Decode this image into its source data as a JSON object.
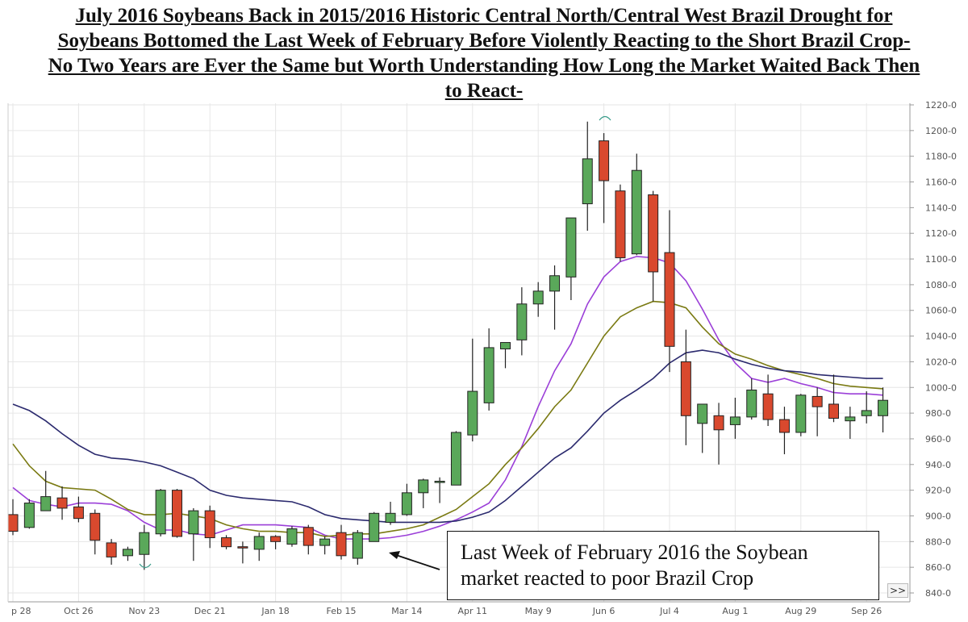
{
  "title": {
    "line1": "July 2016 Soybeans Back in 2015/2016 Historic Central North/Central West Brazil Drought for",
    "line2": "Soybeans Bottomed the Last Week of February Before Violently Reacting to the Short Brazil Crop-",
    "line3": "No Two Years are Ever the Same but Worth Understanding How Long the Market Waited Back Then",
    "line4": "to React-"
  },
  "annotation": {
    "line1": "Last Week of February 2016 the Soybean",
    "line2": "market reacted to poor Brazil Crop"
  },
  "scroll_button_label": ">>",
  "colors": {
    "up": "#5aa85a",
    "down": "#d9492e",
    "ma_fast": "#9b3fd8",
    "ma_mid": "#7a7a12",
    "ma_slow": "#2b2a6e",
    "grid": "#e6e6e6"
  },
  "chart_data": {
    "type": "candlestick",
    "ylim": [
      840,
      1220
    ],
    "y_ticks": [
      "1220-0",
      "1200-0",
      "1180-0",
      "1160-0",
      "1140-0",
      "1120-0",
      "1100-0",
      "1080-0",
      "1060-0",
      "1040-0",
      "1020-0",
      "1000-0",
      "980-0",
      "960-0",
      "940-0",
      "920-0",
      "900-0",
      "880-0",
      "860-0",
      "840-0"
    ],
    "x_tick_labels": [
      "p 28",
      "Oct 26",
      "Nov 23",
      "Dec 21",
      "Jan 18",
      "Feb 15",
      "Mar 14",
      "Apr 11",
      "May 9",
      "Jun 6",
      "Jul 4",
      "Aug 1",
      "Aug 29",
      "Sep 26"
    ],
    "x_tick_index": [
      0,
      4,
      8,
      12,
      16,
      20,
      24,
      28,
      32,
      36,
      40,
      44,
      48,
      52
    ],
    "candles": [
      {
        "o": 901,
        "h": 913,
        "l": 885,
        "c": 888
      },
      {
        "o": 891,
        "h": 913,
        "l": 890,
        "c": 910
      },
      {
        "o": 904,
        "h": 935,
        "l": 904,
        "c": 915
      },
      {
        "o": 914,
        "h": 923,
        "l": 897,
        "c": 906
      },
      {
        "o": 907,
        "h": 915,
        "l": 895,
        "c": 898
      },
      {
        "o": 902,
        "h": 905,
        "l": 870,
        "c": 881
      },
      {
        "o": 879,
        "h": 882,
        "l": 862,
        "c": 868
      },
      {
        "o": 869,
        "h": 876,
        "l": 865,
        "c": 874
      },
      {
        "o": 870,
        "h": 893,
        "l": 858,
        "c": 887
      },
      {
        "o": 886,
        "h": 921,
        "l": 884,
        "c": 920
      },
      {
        "o": 920,
        "h": 921,
        "l": 883,
        "c": 884
      },
      {
        "o": 886,
        "h": 906,
        "l": 865,
        "c": 904
      },
      {
        "o": 904,
        "h": 908,
        "l": 875,
        "c": 883
      },
      {
        "o": 883,
        "h": 885,
        "l": 874,
        "c": 876
      },
      {
        "o": 876,
        "h": 880,
        "l": 863,
        "c": 875
      },
      {
        "o": 874,
        "h": 887,
        "l": 865,
        "c": 884
      },
      {
        "o": 884,
        "h": 885,
        "l": 874,
        "c": 880
      },
      {
        "o": 878,
        "h": 892,
        "l": 876,
        "c": 890
      },
      {
        "o": 891,
        "h": 893,
        "l": 870,
        "c": 877
      },
      {
        "o": 877,
        "h": 884,
        "l": 870,
        "c": 882
      },
      {
        "o": 887,
        "h": 893,
        "l": 866,
        "c": 869
      },
      {
        "o": 867,
        "h": 889,
        "l": 862,
        "c": 887
      },
      {
        "o": 880,
        "h": 903,
        "l": 880,
        "c": 902
      },
      {
        "o": 895,
        "h": 911,
        "l": 893,
        "c": 902
      },
      {
        "o": 901,
        "h": 925,
        "l": 900,
        "c": 918
      },
      {
        "o": 918,
        "h": 929,
        "l": 906,
        "c": 928
      },
      {
        "o": 926,
        "h": 930,
        "l": 910,
        "c": 927
      },
      {
        "o": 924,
        "h": 966,
        "l": 924,
        "c": 965
      },
      {
        "o": 963,
        "h": 1038,
        "l": 958,
        "c": 997
      },
      {
        "o": 988,
        "h": 1046,
        "l": 982,
        "c": 1031
      },
      {
        "o": 1030,
        "h": 1035,
        "l": 1015,
        "c": 1035
      },
      {
        "o": 1037,
        "h": 1078,
        "l": 1025,
        "c": 1065
      },
      {
        "o": 1065,
        "h": 1082,
        "l": 1055,
        "c": 1075
      },
      {
        "o": 1075,
        "h": 1095,
        "l": 1045,
        "c": 1087
      },
      {
        "o": 1086,
        "h": 1132,
        "l": 1068,
        "c": 1132
      },
      {
        "o": 1143,
        "h": 1207,
        "l": 1122,
        "c": 1178
      },
      {
        "o": 1192,
        "h": 1198,
        "l": 1128,
        "c": 1161
      },
      {
        "o": 1153,
        "h": 1158,
        "l": 1098,
        "c": 1101
      },
      {
        "o": 1104,
        "h": 1182,
        "l": 1103,
        "c": 1169
      },
      {
        "o": 1150,
        "h": 1153,
        "l": 1067,
        "c": 1090
      },
      {
        "o": 1105,
        "h": 1138,
        "l": 1012,
        "c": 1032
      },
      {
        "o": 1020,
        "h": 1045,
        "l": 955,
        "c": 978
      },
      {
        "o": 972,
        "h": 985,
        "l": 949,
        "c": 987
      },
      {
        "o": 978,
        "h": 988,
        "l": 940,
        "c": 967
      },
      {
        "o": 971,
        "h": 992,
        "l": 960,
        "c": 977
      },
      {
        "o": 977,
        "h": 1007,
        "l": 975,
        "c": 998
      },
      {
        "o": 995,
        "h": 1010,
        "l": 970,
        "c": 975
      },
      {
        "o": 975,
        "h": 985,
        "l": 948,
        "c": 965
      },
      {
        "o": 965,
        "h": 995,
        "l": 962,
        "c": 994
      },
      {
        "o": 993,
        "h": 1000,
        "l": 962,
        "c": 985
      },
      {
        "o": 987,
        "h": 1010,
        "l": 973,
        "c": 976
      },
      {
        "o": 974,
        "h": 985,
        "l": 960,
        "c": 977
      },
      {
        "o": 978,
        "h": 997,
        "l": 972,
        "c": 982
      },
      {
        "o": 978,
        "h": 1000,
        "l": 965,
        "c": 990
      }
    ],
    "moving_averages": [
      {
        "color_key": "ma_fast",
        "values": [
          922,
          912,
          909,
          907,
          910,
          910,
          909,
          904,
          895,
          889,
          889,
          886,
          885,
          889,
          893,
          893,
          893,
          892,
          891,
          885,
          882,
          882,
          882,
          883,
          885,
          888,
          892,
          897,
          903,
          910,
          928,
          954,
          985,
          1013,
          1034,
          1065,
          1086,
          1098,
          1102,
          1101,
          1097,
          1083,
          1061,
          1037,
          1019,
          1007,
          1004,
          1007,
          1003,
          1000,
          996,
          995,
          995,
          994
        ]
      },
      {
        "color_key": "ma_mid",
        "values": [
          956,
          939,
          927,
          922,
          921,
          920,
          913,
          905,
          901,
          901,
          902,
          900,
          898,
          893,
          890,
          888,
          888,
          887,
          887,
          884,
          885,
          886,
          886,
          888,
          890,
          893,
          899,
          905,
          915,
          925,
          940,
          953,
          968,
          985,
          998,
          1019,
          1040,
          1055,
          1062,
          1067,
          1066,
          1062,
          1047,
          1034,
          1026,
          1022,
          1017,
          1013,
          1010,
          1007,
          1003,
          1001,
          1000,
          999
        ]
      },
      {
        "color_key": "ma_slow",
        "values": [
          987,
          982,
          974,
          964,
          955,
          948,
          945,
          944,
          942,
          939,
          934,
          929,
          920,
          916,
          914,
          913,
          912,
          911,
          907,
          901,
          898,
          897,
          896,
          895,
          895,
          895,
          895,
          896,
          899,
          903,
          912,
          923,
          934,
          945,
          953,
          966,
          980,
          990,
          998,
          1007,
          1019,
          1027,
          1029,
          1027,
          1022,
          1018,
          1015,
          1013,
          1012,
          1010,
          1009,
          1008,
          1007,
          1007
        ]
      }
    ]
  }
}
